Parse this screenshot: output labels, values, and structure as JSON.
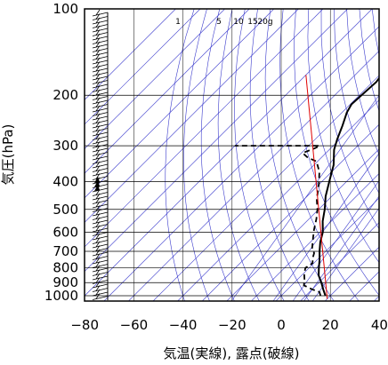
{
  "chart_data": {
    "type": "line",
    "xlabel": "気温(実線), 露点(破線)",
    "ylabel": "気圧(hPa)",
    "x_range": [
      -80,
      40
    ],
    "x_ticks": [
      -80,
      -60,
      -40,
      -20,
      0,
      20,
      40
    ],
    "y_range_hPa": [
      100,
      1050
    ],
    "y_scale": "log",
    "y_ticks": [
      100,
      200,
      300,
      400,
      500,
      600,
      700,
      800,
      900,
      1000
    ],
    "mixing_ratio_labels": [
      {
        "text": "1",
        "value": 1
      },
      {
        "text": "5",
        "value": 5
      },
      {
        "text": "10",
        "value": 10
      },
      {
        "text": "15",
        "value": 15
      },
      {
        "text": "20g",
        "value": 20
      }
    ],
    "colors": {
      "temperature": "#000000",
      "dewpoint": "#000000",
      "reference_line": "#e00000",
      "background_lines": "#3a3acc",
      "grid": "#000000",
      "wind_barbs": "#000000"
    },
    "series": [
      {
        "style": "solid",
        "points": [
          {
            "t": 18.0,
            "p": 1000
          },
          {
            "t": 14.5,
            "p": 950
          },
          {
            "t": 11.0,
            "p": 900
          },
          {
            "t": 7.0,
            "p": 850
          },
          {
            "t": 4.0,
            "p": 800
          },
          {
            "t": 1.0,
            "p": 750
          },
          {
            "t": -2.5,
            "p": 700
          },
          {
            "t": -6.0,
            "p": 650
          },
          {
            "t": -9.0,
            "p": 600
          },
          {
            "t": -13.5,
            "p": 550
          },
          {
            "t": -17.5,
            "p": 500
          },
          {
            "t": -22.5,
            "p": 450
          },
          {
            "t": -27.0,
            "p": 400
          },
          {
            "t": -32.0,
            "p": 350
          },
          {
            "t": -38.0,
            "p": 310
          },
          {
            "t": -41.0,
            "p": 285
          },
          {
            "t": -44.5,
            "p": 255
          },
          {
            "t": -48.0,
            "p": 230
          },
          {
            "t": -49.5,
            "p": 215
          },
          {
            "t": -49.0,
            "p": 195
          },
          {
            "t": -48.5,
            "p": 180
          },
          {
            "t": -50.0,
            "p": 160
          },
          {
            "t": -50.5,
            "p": 145
          },
          {
            "t": -51.5,
            "p": 130
          },
          {
            "t": -53.0,
            "p": 120
          },
          {
            "t": -52.0,
            "p": 110
          },
          {
            "t": -52.5,
            "p": 100
          }
        ]
      },
      {
        "style": "dashed",
        "points": [
          {
            "t": 16.0,
            "p": 1000
          },
          {
            "t": 14.0,
            "p": 970
          },
          {
            "t": 10.0,
            "p": 950
          },
          {
            "t": 5.0,
            "p": 920
          },
          {
            "t": 3.0,
            "p": 880
          },
          {
            "t": 0.5,
            "p": 840
          },
          {
            "t": -1.5,
            "p": 800
          },
          {
            "t": -0.5,
            "p": 770
          },
          {
            "t": -2.5,
            "p": 740
          },
          {
            "t": -4.0,
            "p": 710
          },
          {
            "t": -7.0,
            "p": 680
          },
          {
            "t": -10.5,
            "p": 630
          },
          {
            "t": -13.5,
            "p": 590
          },
          {
            "t": -17.0,
            "p": 540
          },
          {
            "t": -20.5,
            "p": 500
          },
          {
            "t": -25.0,
            "p": 460
          },
          {
            "t": -30.0,
            "p": 410
          },
          {
            "t": -35.0,
            "p": 370
          },
          {
            "t": -40.5,
            "p": 340
          },
          {
            "t": -45.5,
            "p": 330
          },
          {
            "t": -49.5,
            "p": 318
          },
          {
            "t": -46.5,
            "p": 306
          },
          {
            "t": -45.5,
            "p": 300
          },
          {
            "t": -60.0,
            "p": 300
          },
          {
            "t": -80.0,
            "p": 300
          }
        ]
      },
      {
        "style": "reference",
        "points": [
          {
            "t": 20.0,
            "p": 1025
          },
          {
            "t": -80.0,
            "p": 170
          }
        ]
      }
    ]
  }
}
